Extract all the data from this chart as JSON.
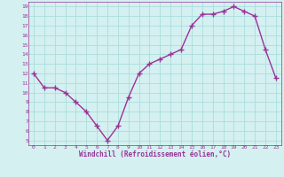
{
  "x": [
    0,
    1,
    2,
    3,
    4,
    5,
    6,
    7,
    8,
    9,
    10,
    11,
    12,
    13,
    14,
    15,
    16,
    17,
    18,
    19,
    20,
    21,
    22,
    23
  ],
  "y": [
    12.0,
    10.5,
    10.5,
    10.0,
    9.0,
    8.0,
    6.5,
    5.0,
    6.5,
    9.5,
    12.0,
    13.0,
    13.5,
    14.0,
    14.5,
    17.0,
    18.2,
    18.2,
    18.5,
    19.0,
    18.5,
    18.0,
    14.5,
    11.5
  ],
  "line_color": "#993399",
  "marker": "+",
  "marker_size": 4,
  "bg_color": "#d4f0f0",
  "grid_color": "#aadddd",
  "xlabel": "Windchill (Refroidissement éolien,°C)",
  "xlabel_color": "#993399",
  "tick_color": "#993399",
  "xlim": [
    -0.5,
    23.5
  ],
  "ylim": [
    4.5,
    19.5
  ],
  "yticks": [
    5,
    6,
    7,
    8,
    9,
    10,
    11,
    12,
    13,
    14,
    15,
    16,
    17,
    18,
    19
  ],
  "xticks": [
    0,
    1,
    2,
    3,
    4,
    5,
    6,
    7,
    8,
    9,
    10,
    11,
    12,
    13,
    14,
    15,
    16,
    17,
    18,
    19,
    20,
    21,
    22,
    23
  ],
  "line_width": 1.0
}
